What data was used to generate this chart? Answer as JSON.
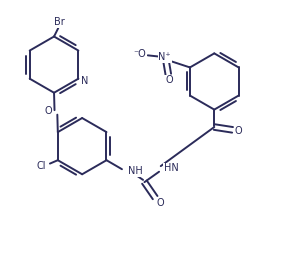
{
  "bg": "#ffffff",
  "lc": "#2b2b5a",
  "lw": 1.4,
  "fs": 7.0,
  "xlim": [
    0,
    10
  ],
  "ylim": [
    0,
    9.3
  ],
  "figw": 2.88,
  "figh": 2.67,
  "dpi": 100
}
